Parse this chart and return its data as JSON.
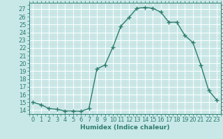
{
  "x": [
    0,
    1,
    2,
    3,
    4,
    5,
    6,
    7,
    8,
    9,
    10,
    11,
    12,
    13,
    14,
    15,
    16,
    17,
    18,
    19,
    20,
    21,
    22,
    23
  ],
  "y": [
    15.0,
    14.7,
    14.2,
    14.1,
    13.9,
    13.9,
    13.85,
    14.2,
    19.3,
    19.8,
    22.1,
    24.8,
    25.9,
    27.1,
    27.2,
    27.1,
    26.6,
    25.3,
    25.3,
    23.6,
    22.7,
    19.8,
    16.5,
    15.3
  ],
  "line_color": "#2e7d6e",
  "marker_color": "#2e7d6e",
  "bg_color": "#c8e8e8",
  "grid_color": "#ffffff",
  "grid_minor_color": "#daf0f0",
  "xlabel": "Humidex (Indice chaleur)",
  "ylabel_ticks": [
    14,
    15,
    16,
    17,
    18,
    19,
    20,
    21,
    22,
    23,
    24,
    25,
    26,
    27
  ],
  "xlim": [
    -0.5,
    23.5
  ],
  "ylim": [
    13.5,
    27.8
  ],
  "xlabel_fontsize": 6.5,
  "tick_fontsize": 6,
  "marker_size": 2.0,
  "line_width": 1.0
}
